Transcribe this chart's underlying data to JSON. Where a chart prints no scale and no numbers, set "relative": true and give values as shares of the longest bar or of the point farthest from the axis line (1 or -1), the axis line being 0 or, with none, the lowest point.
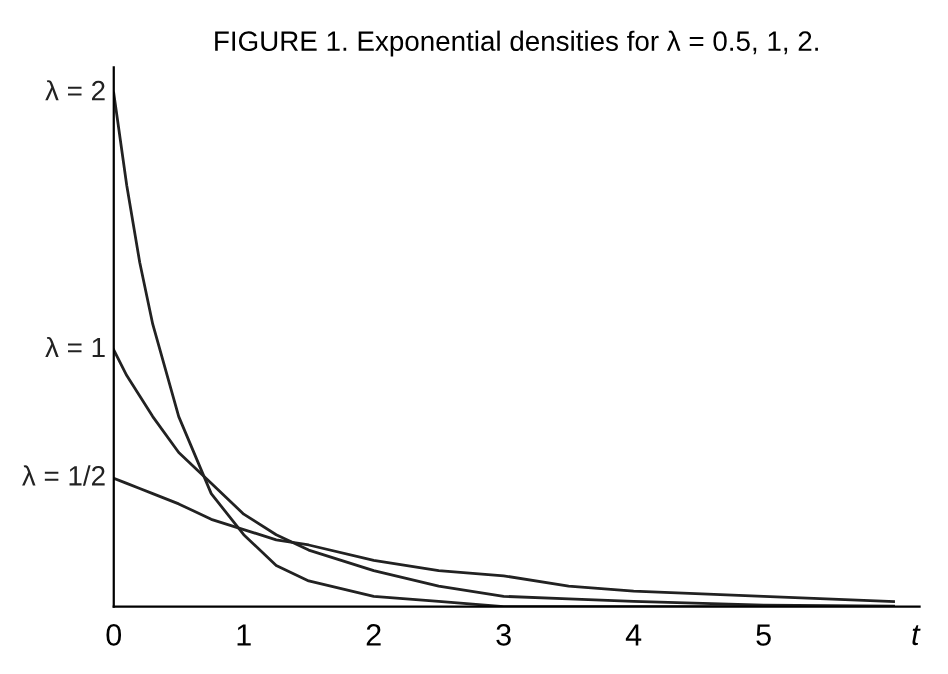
{
  "chart_data": {
    "type": "line",
    "title": "FIGURE 1. Exponential densities for λ = 0.5, 1, 2.",
    "xlabel": "t",
    "relative": true,
    "xlim": [
      0,
      6.2
    ],
    "xticks": [
      0,
      1,
      2,
      3,
      4,
      5
    ],
    "grid": false,
    "legend": false,
    "marker": "none",
    "line_style": "solid",
    "series": [
      {
        "name": "λ = 2",
        "color": "#222222",
        "x": [
          0,
          0.1,
          0.2,
          0.3,
          0.5,
          0.75,
          1,
          1.25,
          1.5,
          2,
          2.5,
          3,
          3.5,
          4,
          5,
          6
        ],
        "values": [
          1,
          0.82,
          0.67,
          0.55,
          0.37,
          0.22,
          0.14,
          0.08,
          0.05,
          0.02,
          0.01,
          0,
          0,
          0,
          0,
          0
        ]
      },
      {
        "name": "λ = 1",
        "color": "#222222",
        "x": [
          0,
          0.1,
          0.2,
          0.3,
          0.5,
          0.75,
          1,
          1.25,
          1.5,
          2,
          2.5,
          3,
          3.5,
          4,
          5,
          6
        ],
        "values": [
          0.5,
          0.45,
          0.41,
          0.37,
          0.3,
          0.24,
          0.18,
          0.14,
          0.11,
          0.07,
          0.04,
          0.02,
          0.015,
          0.01,
          0.003,
          0.001
        ]
      },
      {
        "name": "λ = 1/2",
        "color": "#222222",
        "x": [
          0,
          0.1,
          0.2,
          0.3,
          0.5,
          0.75,
          1,
          1.25,
          1.5,
          2,
          2.5,
          3,
          3.5,
          4,
          5,
          6
        ],
        "values": [
          0.25,
          0.24,
          0.23,
          0.22,
          0.2,
          0.17,
          0.15,
          0.13,
          0.12,
          0.09,
          0.07,
          0.06,
          0.04,
          0.03,
          0.02,
          0.01
        ]
      }
    ]
  }
}
